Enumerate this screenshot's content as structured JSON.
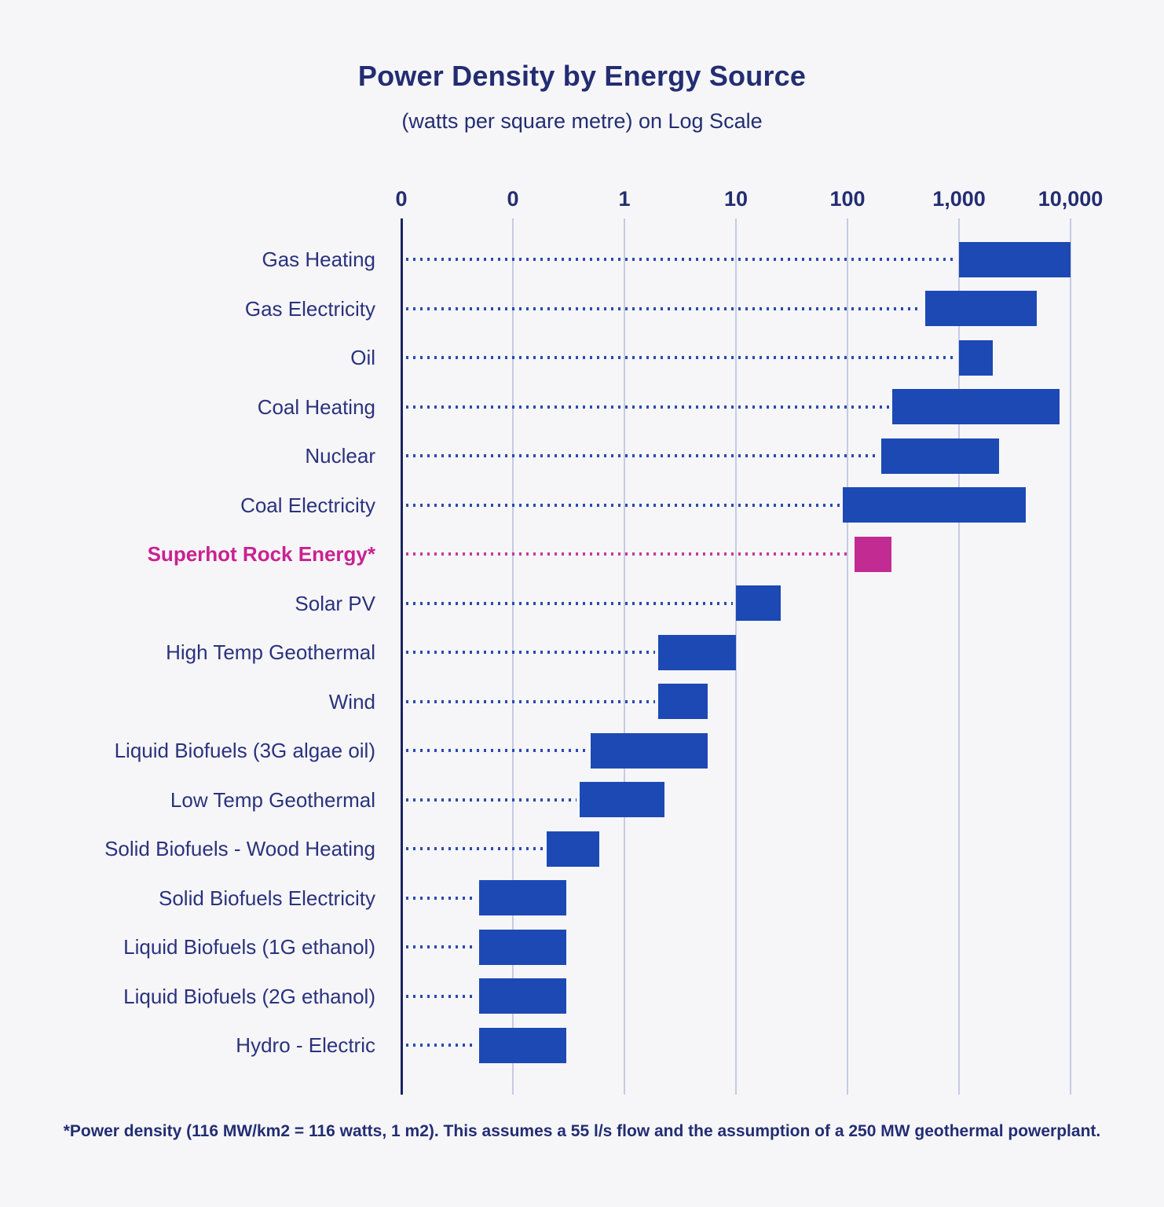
{
  "footnote": "*Power density (116 MW/km2 = 116 watts, 1 m2). This assumes a 55 l/s flow and the assumption of a 250 MW geothermal powerplant.",
  "colors": {
    "background": "#f6f6f8",
    "bar_blue": "#1d49b5",
    "bar_pink": "#c22c92",
    "navy_text": "#232d72",
    "pink_text": "#ca2191",
    "axis_line": "#1b2362",
    "gridline": "#c6cbe2"
  },
  "chart_data": {
    "type": "bar",
    "orientation": "horizontal",
    "x_scale": "log",
    "title": "Power Density by Energy Source",
    "subtitle": "(watts per square metre) on Log Scale",
    "unit": "watts per square metre",
    "grid": "vertical-only",
    "x_ticks": [
      {
        "label": "0",
        "value": 0.01
      },
      {
        "label": "0",
        "value": 0.1
      },
      {
        "label": "1",
        "value": 1
      },
      {
        "label": "10",
        "value": 10
      },
      {
        "label": "100",
        "value": 100
      },
      {
        "label": "1,000",
        "value": 1000
      },
      {
        "label": "10,000",
        "value": 10000
      }
    ],
    "bars": [
      {
        "label": "Gas Heating",
        "range": [
          1000,
          10000
        ],
        "highlight": false
      },
      {
        "label": "Gas Electricity",
        "range": [
          500,
          5000
        ],
        "highlight": false
      },
      {
        "label": "Oil",
        "range": [
          1000,
          2000
        ],
        "highlight": false
      },
      {
        "label": "Coal Heating",
        "range": [
          250,
          8000
        ],
        "highlight": false
      },
      {
        "label": "Nuclear",
        "range": [
          200,
          2300
        ],
        "highlight": false
      },
      {
        "label": "Coal Electricity",
        "range": [
          90,
          4000
        ],
        "highlight": false
      },
      {
        "label": "Superhot Rock Energy*",
        "range": [
          116,
          250
        ],
        "highlight": true
      },
      {
        "label": "Solar PV",
        "range": [
          10,
          25
        ],
        "highlight": false
      },
      {
        "label": "High Temp Geothermal",
        "range": [
          2,
          10
        ],
        "highlight": false
      },
      {
        "label": "Wind",
        "range": [
          2,
          5.6
        ],
        "highlight": false
      },
      {
        "label": "Liquid Biofuels (3G algae oil)",
        "range": [
          0.5,
          5.6
        ],
        "highlight": false
      },
      {
        "label": "Low Temp Geothermal",
        "range": [
          0.4,
          2.3
        ],
        "highlight": false
      },
      {
        "label": "Solid Biofuels - Wood Heating",
        "range": [
          0.2,
          0.6
        ],
        "highlight": false
      },
      {
        "label": "Solid Biofuels Electricity",
        "range": [
          0.05,
          0.3
        ],
        "highlight": false
      },
      {
        "label": "Liquid Biofuels (1G ethanol)",
        "range": [
          0.05,
          0.3
        ],
        "highlight": false
      },
      {
        "label": "Liquid Biofuels (2G ethanol)",
        "range": [
          0.05,
          0.3
        ],
        "highlight": false
      },
      {
        "label": "Hydro - Electric",
        "range": [
          0.05,
          0.3
        ],
        "highlight": false
      }
    ]
  }
}
